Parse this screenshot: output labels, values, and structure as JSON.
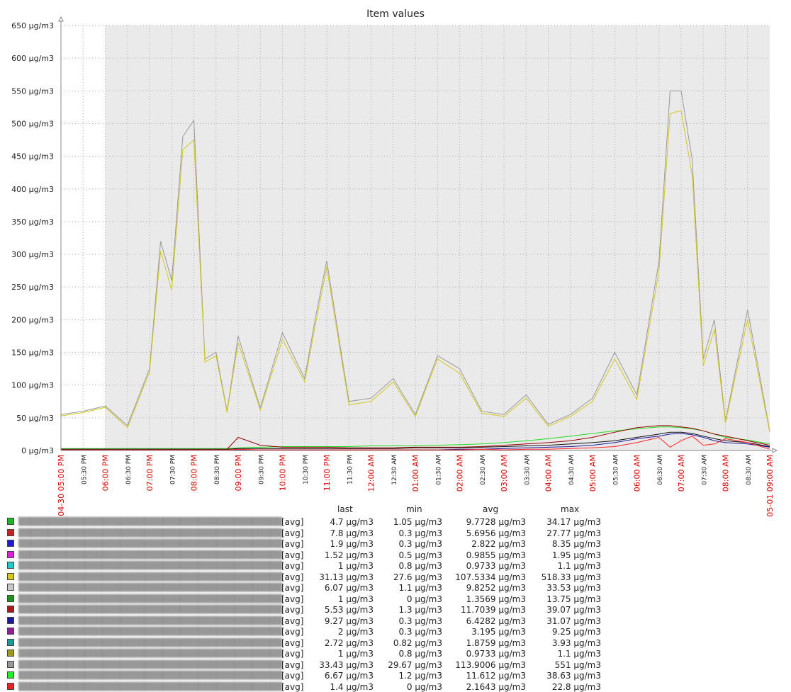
{
  "chart_data": {
    "type": "line",
    "title": "Item values",
    "y_axis": {
      "unit": "µg/m3",
      "ylim": [
        0,
        650
      ],
      "tick_labels": [
        "0 µg/m3",
        "50 µg/m3",
        "100 µg/m3",
        "150 µg/m3",
        "200 µg/m3",
        "250 µg/m3",
        "300 µg/m3",
        "350 µg/m3",
        "400 µg/m3",
        "450 µg/m3",
        "500 µg/m3",
        "550 µg/m3",
        "600 µg/m3",
        "650 µg/m3"
      ]
    },
    "x_axis": {
      "start_label": "04-30 05:00 PM",
      "end_label": "05-01 09:00 AM",
      "tick_labels": [
        "05:30 PM",
        "06:00 PM",
        "06:30 PM",
        "07:00 PM",
        "07:30 PM",
        "08:00 PM",
        "08:30 PM",
        "09:00 PM",
        "09:30 PM",
        "10:00 PM",
        "10:30 PM",
        "11:00 PM",
        "11:30 PM",
        "12:00 AM",
        "12:30 AM",
        "01:00 AM",
        "01:30 AM",
        "02:00 AM",
        "02:30 AM",
        "03:00 AM",
        "03:30 AM",
        "04:00 AM",
        "04:30 AM",
        "05:00 AM",
        "05:30 AM",
        "06:00 AM",
        "06:30 AM",
        "07:00 AM",
        "07:30 AM",
        "08:00 AM",
        "08:30 AM"
      ],
      "major_labels": [
        "06:00 PM",
        "07:00 PM",
        "08:00 PM",
        "09:00 PM",
        "10:00 PM",
        "11:00 PM",
        "12:00 AM",
        "01:00 AM",
        "02:00 AM",
        "03:00 AM",
        "04:00 AM",
        "05:00 AM",
        "06:00 AM",
        "07:00 AM",
        "08:00 AM"
      ],
      "shaded_from": "06:00 PM"
    },
    "series_times": [
      "05:00 PM",
      "05:30 PM",
      "06:00 PM",
      "06:30 PM",
      "07:00 PM",
      "07:15 PM",
      "07:30 PM",
      "07:45 PM",
      "08:00 PM",
      "08:15 PM",
      "08:30 PM",
      "08:45 PM",
      "09:00 PM",
      "09:30 PM",
      "10:00 PM",
      "10:30 PM",
      "10:45 PM",
      "11:00 PM",
      "11:30 PM",
      "12:00 AM",
      "12:30 AM",
      "01:00 AM",
      "01:30 AM",
      "02:00 AM",
      "02:30 AM",
      "03:00 AM",
      "03:30 AM",
      "04:00 AM",
      "04:30 AM",
      "05:00 AM",
      "05:30 AM",
      "06:00 AM",
      "06:30 AM",
      "06:45 AM",
      "07:00 AM",
      "07:15 AM",
      "07:30 AM",
      "07:45 AM",
      "08:00 AM",
      "08:30 AM",
      "09:00 AM"
    ],
    "series": [
      {
        "color": "#999999",
        "values": [
          55,
          60,
          68,
          38,
          125,
          320,
          260,
          480,
          505,
          140,
          150,
          60,
          175,
          65,
          180,
          110,
          205,
          290,
          75,
          80,
          110,
          55,
          145,
          125,
          60,
          55,
          85,
          40,
          55,
          80,
          150,
          85,
          290,
          550,
          550,
          445,
          140,
          200,
          45,
          215,
          30
        ]
      },
      {
        "color": "#d4c81c",
        "values": [
          53,
          58,
          66,
          35,
          120,
          305,
          245,
          460,
          475,
          135,
          145,
          58,
          165,
          62,
          170,
          105,
          195,
          280,
          70,
          75,
          105,
          52,
          140,
          118,
          57,
          52,
          80,
          37,
          52,
          75,
          140,
          78,
          275,
          515,
          520,
          420,
          130,
          185,
          42,
          200,
          28
        ]
      },
      {
        "color": "#22dd22",
        "values": [
          3,
          3,
          3,
          3,
          3,
          3,
          3,
          3,
          3,
          3,
          3,
          3,
          4,
          5,
          6,
          6,
          6,
          6,
          6,
          7,
          7,
          7,
          8,
          9,
          10,
          12,
          15,
          18,
          22,
          26,
          30,
          33,
          36,
          36,
          35,
          33,
          30,
          25,
          20,
          16,
          10
        ]
      },
      {
        "color": "#990000",
        "values": [
          2,
          2,
          2,
          2,
          2,
          2,
          2,
          2,
          2,
          2,
          2,
          2,
          20,
          8,
          5,
          5,
          5,
          5,
          4,
          4,
          4,
          5,
          5,
          5,
          6,
          8,
          10,
          12,
          15,
          20,
          28,
          35,
          38,
          38,
          36,
          34,
          30,
          25,
          22,
          15,
          8
        ]
      },
      {
        "color": "#111111",
        "values": [
          2,
          2,
          2,
          2,
          2,
          2,
          2,
          2,
          2,
          2,
          2,
          2,
          3,
          3,
          3,
          3,
          3,
          3,
          3,
          3,
          3,
          4,
          4,
          4,
          5,
          6,
          7,
          8,
          10,
          12,
          15,
          20,
          25,
          28,
          28,
          26,
          22,
          18,
          15,
          12,
          6
        ]
      },
      {
        "color": "#1a1aa0",
        "values": [
          1,
          1,
          1,
          1,
          1,
          1,
          1,
          1,
          1,
          1,
          1,
          1,
          1,
          1,
          1,
          1,
          1,
          1,
          1,
          1,
          1,
          1,
          1,
          2,
          2,
          3,
          4,
          5,
          6,
          8,
          12,
          18,
          22,
          25,
          26,
          24,
          20,
          15,
          12,
          10,
          5
        ]
      },
      {
        "color": "#ff2222",
        "values": [
          1,
          1,
          1,
          1,
          1,
          1,
          1,
          1,
          1,
          1,
          1,
          1,
          2,
          1,
          1,
          1,
          1,
          1,
          1,
          1,
          1,
          1,
          1,
          1,
          2,
          1,
          2,
          2,
          3,
          4,
          6,
          12,
          20,
          5,
          15,
          22,
          8,
          10,
          18,
          12,
          2
        ]
      }
    ]
  },
  "legend": {
    "headers": {
      "last": "last",
      "min": "min",
      "avg": "avg",
      "max": "max"
    },
    "items": [
      {
        "color": "#1fb81f",
        "func": "[avg]",
        "last": "4.7 µg/m3",
        "min": "1.05 µg/m3",
        "avg": "9.7728 µg/m3",
        "max": "34.17 µg/m3"
      },
      {
        "color": "#cc2020",
        "func": "[avg]",
        "last": "7.8 µg/m3",
        "min": "0.3 µg/m3",
        "avg": "5.6956 µg/m3",
        "max": "27.77 µg/m3"
      },
      {
        "color": "#1c1cd0",
        "func": "[avg]",
        "last": "1.9 µg/m3",
        "min": "0.3 µg/m3",
        "avg": "2.822 µg/m3",
        "max": "8.35 µg/m3"
      },
      {
        "color": "#dd22dd",
        "func": "[avg]",
        "last": "1.52 µg/m3",
        "min": "0.5 µg/m3",
        "avg": "0.9855 µg/m3",
        "max": "1.95 µg/m3"
      },
      {
        "color": "#1ccccc",
        "func": "[avg]",
        "last": "1 µg/m3",
        "min": "0.8 µg/m3",
        "avg": "0.9733 µg/m3",
        "max": "1.1 µg/m3"
      },
      {
        "color": "#d4c81c",
        "func": "[avg]",
        "last": "31.13 µg/m3",
        "min": "27.6 µg/m3",
        "avg": "107.5334 µg/m3",
        "max": "518.33 µg/m3"
      },
      {
        "color": "#c8c8c8",
        "func": "[avg]",
        "last": "6.07 µg/m3",
        "min": "1.1 µg/m3",
        "avg": "9.8252 µg/m3",
        "max": "33.53 µg/m3"
      },
      {
        "color": "#1a961a",
        "func": "[avg]",
        "last": "1 µg/m3",
        "min": "0 µg/m3",
        "avg": "1.3569 µg/m3",
        "max": "13.75 µg/m3"
      },
      {
        "color": "#aa1a1a",
        "func": "[avg]",
        "last": "5.53 µg/m3",
        "min": "1.3 µg/m3",
        "avg": "11.7039 µg/m3",
        "max": "39.07 µg/m3"
      },
      {
        "color": "#1a1aa0",
        "func": "[avg]",
        "last": "9.27 µg/m3",
        "min": "0.3 µg/m3",
        "avg": "6.4282 µg/m3",
        "max": "31.07 µg/m3"
      },
      {
        "color": "#9a1a9a",
        "func": "[avg]",
        "last": "2 µg/m3",
        "min": "0.3 µg/m3",
        "avg": "3.195 µg/m3",
        "max": "9.25 µg/m3"
      },
      {
        "color": "#1a9a9a",
        "func": "[avg]",
        "last": "2.72 µg/m3",
        "min": "0.82 µg/m3",
        "avg": "1.8759 µg/m3",
        "max": "3.93 µg/m3"
      },
      {
        "color": "#a09a1a",
        "func": "[avg]",
        "last": "1 µg/m3",
        "min": "0.8 µg/m3",
        "avg": "0.9733 µg/m3",
        "max": "1.1 µg/m3"
      },
      {
        "color": "#999999",
        "func": "[avg]",
        "last": "33.43 µg/m3",
        "min": "29.67 µg/m3",
        "avg": "113.9006 µg/m3",
        "max": "551 µg/m3"
      },
      {
        "color": "#22ee22",
        "func": "[avg]",
        "last": "6.67 µg/m3",
        "min": "1.2 µg/m3",
        "avg": "11.612 µg/m3",
        "max": "38.63 µg/m3"
      },
      {
        "color": "#ee2020",
        "func": "[avg]",
        "last": "1.4 µg/m3",
        "min": "0 µg/m3",
        "avg": "2.1643 µg/m3",
        "max": "22.8 µg/m3"
      }
    ]
  }
}
